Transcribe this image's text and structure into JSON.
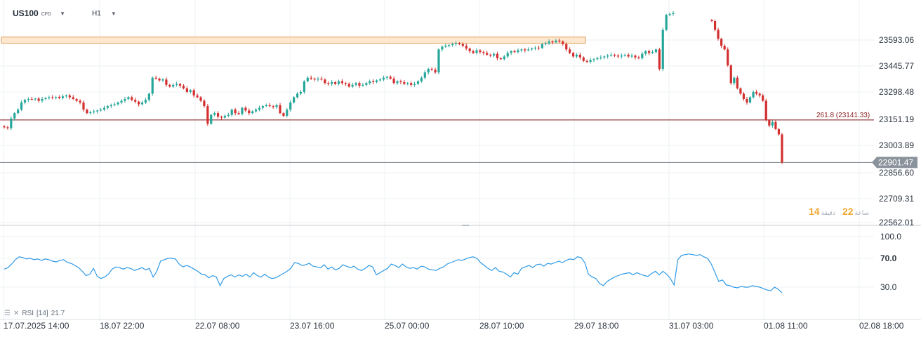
{
  "header": {
    "symbol": "US100",
    "symbol_sub": "CFD",
    "timeframe": "H1"
  },
  "rsi_legend": {
    "label": "RSI",
    "period": "[14]",
    "value": "21.7"
  },
  "overlay": {
    "num1": "14",
    "text1": "ساعة",
    "num2": "22",
    "text2": "دقيقة"
  },
  "colors": {
    "up": "#26a69a",
    "down": "#d32f2f",
    "rsi": "#2e9ae6",
    "fib_line": "#8b1a1a",
    "zone_fill": "#fde7cf",
    "zone_border": "#e3a060",
    "price_badge": "#8a929b"
  },
  "chart_data": [
    {
      "type": "candlestick",
      "title": "",
      "y_ticks": [
        "23593.06",
        "23445.77",
        "23298.48",
        "23151.19",
        "23003.89",
        "22856.60",
        "22709.31",
        "22562.01"
      ],
      "ylim": [
        22562.01,
        23620
      ],
      "x_ticks": [
        "17.07.2025 14:00",
        "18.07 22:00",
        "22.07 08:00",
        "23.07 16:00",
        "25.07 00:00",
        "28.07 10:00",
        "29.07 18:00",
        "31.07 03:00",
        "01.08 11:00",
        "02.08 18:00"
      ],
      "close_series": [
        23100,
        23095,
        23150,
        23180,
        23200,
        23240,
        23255,
        23260,
        23258,
        23262,
        23250,
        23260,
        23265,
        23270,
        23268,
        23272,
        23265,
        23275,
        23280,
        23270,
        23260,
        23250,
        23240,
        23200,
        23180,
        23185,
        23190,
        23195,
        23200,
        23210,
        23220,
        23225,
        23230,
        23240,
        23250,
        23260,
        23270,
        23255,
        23245,
        23230,
        23240,
        23255,
        23290,
        23380,
        23375,
        23365,
        23370,
        23340,
        23330,
        23340,
        23345,
        23335,
        23320,
        23300,
        23310,
        23280,
        23270,
        23250,
        23220,
        23120,
        23170,
        23180,
        23160,
        23155,
        23165,
        23170,
        23200,
        23180,
        23175,
        23210,
        23195,
        23180,
        23190,
        23200,
        23210,
        23220,
        23225,
        23220,
        23215,
        23225,
        23180,
        23165,
        23200,
        23240,
        23270,
        23290,
        23300,
        23360,
        23380,
        23375,
        23370,
        23375,
        23370,
        23350,
        23345,
        23355,
        23345,
        23360,
        23350,
        23345,
        23330,
        23340,
        23350,
        23335,
        23340,
        23350,
        23360,
        23355,
        23365,
        23370,
        23380,
        23385,
        23375,
        23350,
        23360,
        23355,
        23345,
        23350,
        23340,
        23345,
        23360,
        23380,
        23410,
        23430,
        23425,
        23410,
        23540,
        23555,
        23560,
        23565,
        23570,
        23575,
        23570,
        23560,
        23545,
        23530,
        23520,
        23535,
        23525,
        23520,
        23510,
        23505,
        23515,
        23490,
        23485,
        23500,
        23520,
        23530,
        23525,
        23535,
        23540,
        23535,
        23540,
        23545,
        23550,
        23548,
        23570,
        23575,
        23585,
        23580,
        23590,
        23585,
        23570,
        23540,
        23520,
        23500,
        23510,
        23495,
        23475,
        23470,
        23480,
        23485,
        23490,
        23495,
        23500,
        23505,
        23510,
        23505,
        23500,
        23505,
        23510,
        23500,
        23505,
        23495,
        23490,
        23515,
        23530,
        23520,
        23525,
        23540,
        23430,
        23650,
        23735,
        23740,
        23745
      ],
      "close_series_2": [
        23700,
        23650,
        23600,
        23560,
        23540,
        23450,
        23350,
        23380,
        23320,
        23290,
        23260,
        23240,
        23270,
        23300,
        23290,
        23280,
        23250,
        23140,
        23110,
        23130,
        23090,
        23060,
        22902
      ],
      "horizontal_lines": [
        {
          "label": "261.8 (23141.33)",
          "value": 23141.33
        },
        {
          "label": "22901.47",
          "value": 22901.47
        }
      ],
      "zone": {
        "from": 23575,
        "to": 23610
      }
    },
    {
      "type": "line",
      "title": "RSI",
      "y_ticks": [
        "100.0",
        "70.0",
        "30.0"
      ],
      "ylim": [
        0,
        100
      ],
      "series": [
        {
          "values": [
            55,
            57,
            62,
            68,
            72,
            71,
            69,
            70,
            68,
            69,
            67,
            69,
            68,
            66,
            65,
            67,
            68,
            64,
            63,
            60,
            57,
            52,
            46,
            48,
            56,
            45,
            42,
            44,
            48,
            55,
            58,
            57,
            55,
            57,
            56,
            53,
            55,
            57,
            54,
            56,
            44,
            52,
            66,
            68,
            70,
            70,
            69,
            62,
            58,
            60,
            58,
            55,
            52,
            48,
            47,
            43,
            46,
            44,
            32,
            42,
            45,
            47,
            44,
            47,
            45,
            48,
            44,
            50,
            46,
            44,
            48,
            44,
            42,
            43,
            46,
            49,
            52,
            56,
            64,
            63,
            60,
            61,
            63,
            59,
            58,
            57,
            61,
            55,
            58,
            54,
            56,
            61,
            59,
            57,
            59,
            55,
            53,
            56,
            60,
            58,
            47,
            50,
            53,
            56,
            62,
            60,
            57,
            62,
            58,
            56,
            57,
            55,
            59,
            58,
            55,
            54,
            53,
            56,
            58,
            62,
            64,
            66,
            68,
            67,
            69,
            71,
            72,
            70,
            64,
            60,
            56,
            53,
            57,
            52,
            51,
            48,
            44,
            50,
            48,
            56,
            58,
            60,
            57,
            61,
            62,
            59,
            63,
            62,
            64,
            66,
            64,
            67,
            69,
            68,
            72,
            71,
            64,
            48,
            44,
            42,
            35,
            32,
            38,
            41,
            44,
            46,
            48,
            49,
            50,
            47,
            50,
            48,
            46,
            45,
            49,
            52,
            47,
            52,
            48,
            42,
            33,
            68,
            74,
            75,
            76,
            75,
            74,
            75,
            72,
            70,
            62,
            50,
            38,
            40,
            33,
            32,
            30,
            29,
            31,
            30,
            30,
            32,
            31,
            30,
            28,
            26,
            25,
            30,
            27,
            22
          ]
        }
      ]
    }
  ]
}
